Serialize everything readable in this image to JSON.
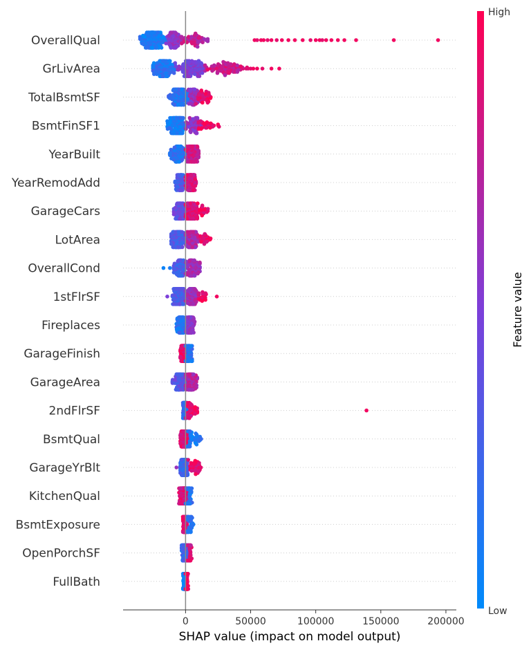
{
  "chart_data": {
    "type": "scatter",
    "subtype": "shap-beeswarm",
    "title": "",
    "xlabel": "SHAP value (impact on model output)",
    "xlim": [
      -48000,
      208000
    ],
    "xticks": [
      0,
      50000,
      100000,
      150000,
      200000
    ],
    "xtick_labels": [
      "0",
      "50000",
      "100000",
      "150000",
      "200000"
    ],
    "zero_line": 0,
    "grid": false,
    "colorbar": {
      "title": "Feature value",
      "high_label": "High",
      "low_label": "Low",
      "low_color": "#008bfb",
      "mid_color": "#7c3fd9",
      "high_color": "#ff0052"
    },
    "features": [
      {
        "name": "OverallQual",
        "clusters": [
          [
            -35000,
            -15000,
            160,
            0.1
          ],
          [
            -15000,
            -3000,
            70,
            0.55
          ],
          [
            -3000,
            17000,
            60,
            0.75
          ]
        ],
        "outliers": [
          [
            53000,
            0.95
          ],
          [
            55000,
            0.9
          ],
          [
            58000,
            0.95
          ],
          [
            60000,
            0.95
          ],
          [
            63000,
            0.9
          ],
          [
            66000,
            0.95
          ],
          [
            70000,
            0.9
          ],
          [
            74000,
            0.95
          ],
          [
            79000,
            0.95
          ],
          [
            84000,
            0.95
          ],
          [
            90000,
            0.95
          ],
          [
            96000,
            0.9
          ],
          [
            100000,
            0.95
          ],
          [
            103000,
            0.95
          ],
          [
            105000,
            0.9
          ],
          [
            108000,
            0.95
          ],
          [
            112000,
            0.95
          ],
          [
            117000,
            0.95
          ],
          [
            122000,
            0.95
          ],
          [
            131000,
            0.95
          ],
          [
            160000,
            0.95
          ],
          [
            194000,
            0.95
          ]
        ]
      },
      {
        "name": "GrLivArea",
        "clusters": [
          [
            -25000,
            -8000,
            140,
            0.15
          ],
          [
            -8000,
            15000,
            130,
            0.5
          ],
          [
            15000,
            48000,
            90,
            0.8
          ]
        ],
        "outliers": [
          [
            50000,
            0.9
          ],
          [
            52000,
            0.95
          ],
          [
            55000,
            0.95
          ],
          [
            59000,
            0.9
          ],
          [
            66000,
            0.95
          ],
          [
            72000,
            0.95
          ]
        ]
      },
      {
        "name": "TotalBsmtSF",
        "clusters": [
          [
            -13000,
            2000,
            130,
            0.15
          ],
          [
            2000,
            10000,
            60,
            0.6
          ],
          [
            8000,
            22000,
            40,
            0.9
          ]
        ],
        "outliers": []
      },
      {
        "name": "BsmtFinSF1",
        "clusters": [
          [
            -14000,
            0,
            130,
            0.1
          ],
          [
            0,
            12000,
            60,
            0.6
          ],
          [
            10000,
            26000,
            30,
            0.9
          ]
        ],
        "outliers": []
      },
      {
        "name": "YearBuilt",
        "clusters": [
          [
            -12000,
            0,
            100,
            0.15
          ],
          [
            0,
            10000,
            110,
            0.8
          ]
        ],
        "outliers": []
      },
      {
        "name": "YearRemodAdd",
        "clusters": [
          [
            -8000,
            0,
            70,
            0.3
          ],
          [
            0,
            8000,
            110,
            0.85
          ]
        ],
        "outliers": []
      },
      {
        "name": "GarageCars",
        "clusters": [
          [
            -9000,
            0,
            90,
            0.4
          ],
          [
            0,
            9000,
            110,
            0.85
          ],
          [
            9000,
            18000,
            25,
            0.95
          ]
        ],
        "outliers": []
      },
      {
        "name": "LotArea",
        "clusters": [
          [
            -11000,
            0,
            120,
            0.3
          ],
          [
            0,
            10000,
            100,
            0.7
          ],
          [
            10000,
            20000,
            25,
            0.9
          ]
        ],
        "outliers": []
      },
      {
        "name": "OverallCond",
        "clusters": [
          [
            -9000,
            0,
            90,
            0.3
          ],
          [
            0,
            11000,
            90,
            0.65
          ]
        ],
        "outliers": [
          [
            -17000,
            0.05
          ],
          [
            -12000,
            0.1
          ]
        ]
      },
      {
        "name": "1stFlrSF",
        "clusters": [
          [
            -10000,
            0,
            110,
            0.3
          ],
          [
            0,
            10000,
            90,
            0.65
          ],
          [
            10000,
            16000,
            20,
            0.9
          ]
        ],
        "outliers": [
          [
            -14000,
            0.5
          ],
          [
            24000,
            0.95
          ]
        ]
      },
      {
        "name": "Fireplaces",
        "clusters": [
          [
            -7000,
            0,
            100,
            0.15
          ],
          [
            0,
            7000,
            110,
            0.55
          ]
        ],
        "outliers": []
      },
      {
        "name": "GarageFinish",
        "clusters": [
          [
            -4000,
            1000,
            150,
            0.9
          ],
          [
            0,
            5000,
            60,
            0.15
          ]
        ],
        "outliers": []
      },
      {
        "name": "GarageArea",
        "clusters": [
          [
            -10000,
            0,
            100,
            0.35
          ],
          [
            0,
            9000,
            100,
            0.7
          ]
        ],
        "outliers": []
      },
      {
        "name": "2ndFlrSF",
        "clusters": [
          [
            -2000,
            1000,
            160,
            0.2
          ],
          [
            0,
            9000,
            40,
            0.9
          ]
        ],
        "outliers": [
          [
            139000,
            0.95
          ]
        ]
      },
      {
        "name": "BsmtQual",
        "clusters": [
          [
            -4000,
            2000,
            170,
            0.9
          ],
          [
            1000,
            12000,
            40,
            0.1
          ]
        ],
        "outliers": []
      },
      {
        "name": "GarageYrBlt",
        "clusters": [
          [
            -4000,
            2000,
            160,
            0.25
          ],
          [
            2000,
            12000,
            40,
            0.9
          ]
        ],
        "outliers": [
          [
            -7000,
            0.6
          ]
        ]
      },
      {
        "name": "KitchenQual",
        "clusters": [
          [
            -5000,
            2000,
            160,
            0.85
          ],
          [
            0,
            5000,
            50,
            0.15
          ]
        ],
        "outliers": []
      },
      {
        "name": "BsmtExposure",
        "clusters": [
          [
            -2000,
            1000,
            170,
            0.9
          ],
          [
            1000,
            6000,
            40,
            0.15
          ]
        ],
        "outliers": []
      },
      {
        "name": "OpenPorchSF",
        "clusters": [
          [
            -3000,
            2000,
            160,
            0.25
          ],
          [
            1000,
            5000,
            40,
            0.85
          ]
        ],
        "outliers": []
      },
      {
        "name": "FullBath",
        "clusters": [
          [
            -2000,
            0,
            90,
            0.05
          ],
          [
            0,
            2000,
            90,
            0.95
          ]
        ],
        "outliers": []
      }
    ]
  }
}
